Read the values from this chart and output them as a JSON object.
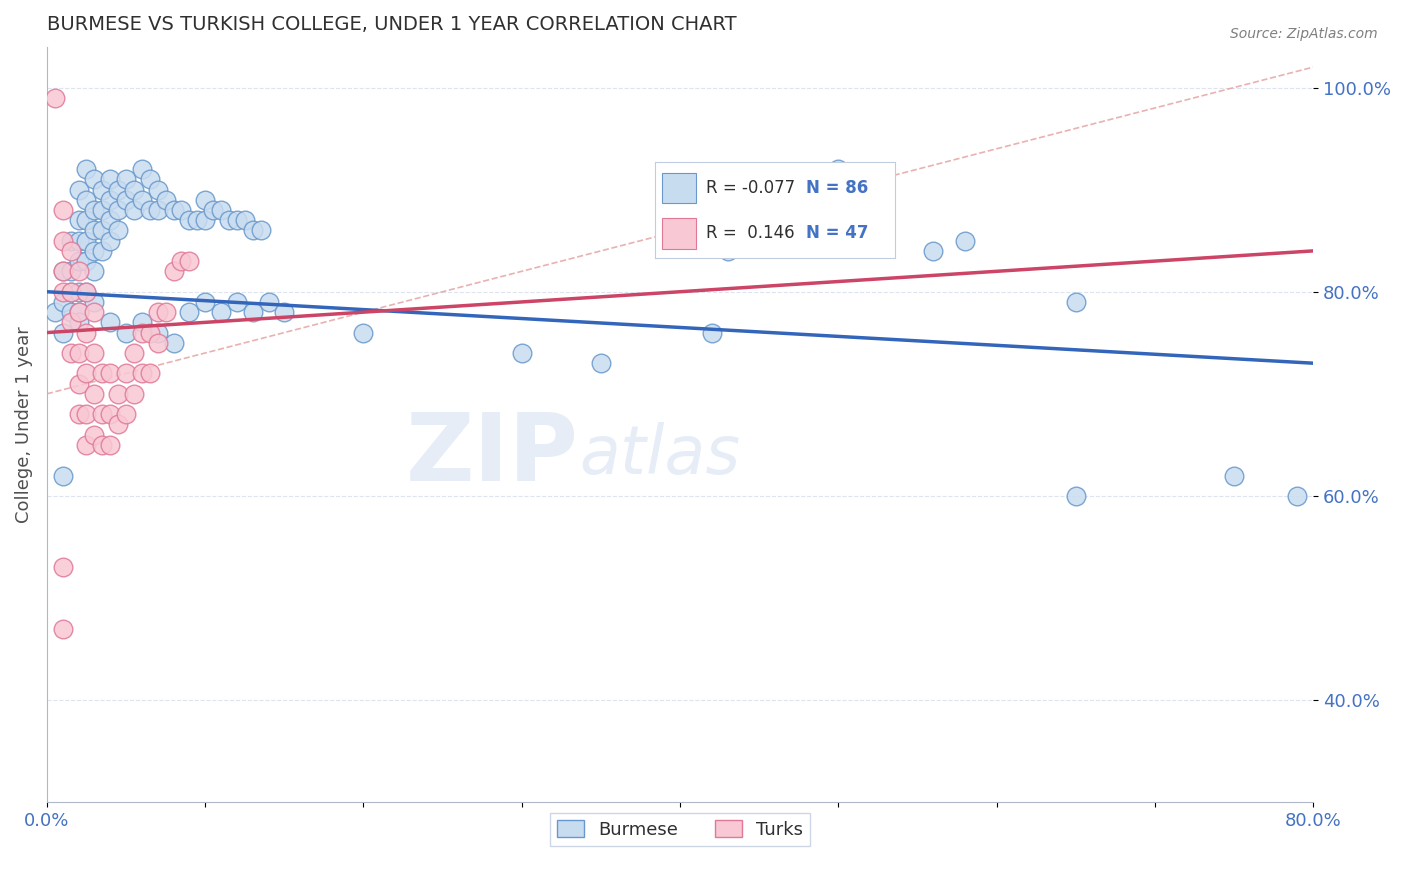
{
  "title": "BURMESE VS TURKISH COLLEGE, UNDER 1 YEAR CORRELATION CHART",
  "source_text": "Source: ZipAtlas.com",
  "ylabel": "College, Under 1 year",
  "xlim": [
    0.0,
    0.8
  ],
  "ylim": [
    0.3,
    1.04
  ],
  "xticks": [
    0.0,
    0.1,
    0.2,
    0.3,
    0.4,
    0.5,
    0.6,
    0.7,
    0.8
  ],
  "yticks": [
    0.4,
    0.6,
    0.8,
    1.0
  ],
  "yticklabels": [
    "40.0%",
    "60.0%",
    "80.0%",
    "100.0%"
  ],
  "legend_blue_r": "-0.077",
  "legend_blue_n": "86",
  "legend_pink_r": "0.146",
  "legend_pink_n": "47",
  "legend_label_blue": "Burmese",
  "legend_label_pink": "Turks",
  "blue_face_color": "#c8dcf0",
  "blue_edge_color": "#6898cc",
  "pink_face_color": "#f8c8d4",
  "pink_edge_color": "#e07898",
  "blue_line_color": "#3366bb",
  "pink_line_color": "#cc4466",
  "diag_line_color": "#e09090",
  "blue_scatter": [
    [
      0.005,
      0.78
    ],
    [
      0.01,
      0.82
    ],
    [
      0.01,
      0.79
    ],
    [
      0.01,
      0.76
    ],
    [
      0.015,
      0.85
    ],
    [
      0.015,
      0.82
    ],
    [
      0.015,
      0.8
    ],
    [
      0.015,
      0.78
    ],
    [
      0.02,
      0.9
    ],
    [
      0.02,
      0.87
    ],
    [
      0.02,
      0.85
    ],
    [
      0.02,
      0.83
    ],
    [
      0.02,
      0.8
    ],
    [
      0.02,
      0.78
    ],
    [
      0.025,
      0.92
    ],
    [
      0.025,
      0.89
    ],
    [
      0.025,
      0.87
    ],
    [
      0.025,
      0.85
    ],
    [
      0.025,
      0.83
    ],
    [
      0.025,
      0.8
    ],
    [
      0.03,
      0.91
    ],
    [
      0.03,
      0.88
    ],
    [
      0.03,
      0.86
    ],
    [
      0.03,
      0.84
    ],
    [
      0.03,
      0.82
    ],
    [
      0.03,
      0.79
    ],
    [
      0.035,
      0.9
    ],
    [
      0.035,
      0.88
    ],
    [
      0.035,
      0.86
    ],
    [
      0.035,
      0.84
    ],
    [
      0.04,
      0.91
    ],
    [
      0.04,
      0.89
    ],
    [
      0.04,
      0.87
    ],
    [
      0.04,
      0.85
    ],
    [
      0.045,
      0.9
    ],
    [
      0.045,
      0.88
    ],
    [
      0.045,
      0.86
    ],
    [
      0.05,
      0.91
    ],
    [
      0.05,
      0.89
    ],
    [
      0.055,
      0.9
    ],
    [
      0.055,
      0.88
    ],
    [
      0.06,
      0.92
    ],
    [
      0.06,
      0.89
    ],
    [
      0.065,
      0.91
    ],
    [
      0.065,
      0.88
    ],
    [
      0.07,
      0.9
    ],
    [
      0.07,
      0.88
    ],
    [
      0.075,
      0.89
    ],
    [
      0.08,
      0.88
    ],
    [
      0.085,
      0.88
    ],
    [
      0.09,
      0.87
    ],
    [
      0.095,
      0.87
    ],
    [
      0.1,
      0.89
    ],
    [
      0.1,
      0.87
    ],
    [
      0.105,
      0.88
    ],
    [
      0.11,
      0.88
    ],
    [
      0.115,
      0.87
    ],
    [
      0.12,
      0.87
    ],
    [
      0.125,
      0.87
    ],
    [
      0.13,
      0.86
    ],
    [
      0.135,
      0.86
    ],
    [
      0.04,
      0.77
    ],
    [
      0.05,
      0.76
    ],
    [
      0.06,
      0.77
    ],
    [
      0.07,
      0.76
    ],
    [
      0.08,
      0.75
    ],
    [
      0.09,
      0.78
    ],
    [
      0.1,
      0.79
    ],
    [
      0.11,
      0.78
    ],
    [
      0.12,
      0.79
    ],
    [
      0.13,
      0.78
    ],
    [
      0.14,
      0.79
    ],
    [
      0.15,
      0.78
    ],
    [
      0.2,
      0.76
    ],
    [
      0.3,
      0.74
    ],
    [
      0.35,
      0.73
    ],
    [
      0.42,
      0.76
    ],
    [
      0.43,
      0.84
    ],
    [
      0.5,
      0.92
    ],
    [
      0.56,
      0.84
    ],
    [
      0.58,
      0.85
    ],
    [
      0.65,
      0.79
    ],
    [
      0.65,
      0.6
    ],
    [
      0.75,
      0.62
    ],
    [
      0.79,
      0.6
    ],
    [
      0.01,
      0.62
    ],
    [
      0.02,
      0.77
    ]
  ],
  "pink_scatter": [
    [
      0.005,
      0.99
    ],
    [
      0.01,
      0.88
    ],
    [
      0.01,
      0.85
    ],
    [
      0.01,
      0.82
    ],
    [
      0.01,
      0.8
    ],
    [
      0.015,
      0.84
    ],
    [
      0.015,
      0.8
    ],
    [
      0.015,
      0.77
    ],
    [
      0.015,
      0.74
    ],
    [
      0.02,
      0.82
    ],
    [
      0.02,
      0.78
    ],
    [
      0.02,
      0.74
    ],
    [
      0.02,
      0.71
    ],
    [
      0.02,
      0.68
    ],
    [
      0.025,
      0.8
    ],
    [
      0.025,
      0.76
    ],
    [
      0.025,
      0.72
    ],
    [
      0.025,
      0.68
    ],
    [
      0.025,
      0.65
    ],
    [
      0.03,
      0.78
    ],
    [
      0.03,
      0.74
    ],
    [
      0.03,
      0.7
    ],
    [
      0.03,
      0.66
    ],
    [
      0.035,
      0.72
    ],
    [
      0.035,
      0.68
    ],
    [
      0.035,
      0.65
    ],
    [
      0.04,
      0.72
    ],
    [
      0.04,
      0.68
    ],
    [
      0.04,
      0.65
    ],
    [
      0.045,
      0.7
    ],
    [
      0.045,
      0.67
    ],
    [
      0.05,
      0.72
    ],
    [
      0.05,
      0.68
    ],
    [
      0.055,
      0.74
    ],
    [
      0.055,
      0.7
    ],
    [
      0.06,
      0.76
    ],
    [
      0.06,
      0.72
    ],
    [
      0.065,
      0.76
    ],
    [
      0.065,
      0.72
    ],
    [
      0.07,
      0.78
    ],
    [
      0.07,
      0.75
    ],
    [
      0.075,
      0.78
    ],
    [
      0.08,
      0.82
    ],
    [
      0.085,
      0.83
    ],
    [
      0.09,
      0.83
    ],
    [
      0.01,
      0.53
    ],
    [
      0.01,
      0.47
    ]
  ],
  "blue_line_x": [
    0.0,
    0.8
  ],
  "blue_line_y": [
    0.8,
    0.73
  ],
  "pink_line_x": [
    0.0,
    0.8
  ],
  "pink_line_y": [
    0.76,
    0.84
  ],
  "diag_line_x": [
    0.0,
    0.8
  ],
  "diag_line_y": [
    0.7,
    1.02
  ],
  "watermark_zip": "ZIP",
  "watermark_atlas": "atlas",
  "background_color": "#ffffff",
  "grid_color": "#dde4f0",
  "title_color": "#303030",
  "axis_label_color": "#505050",
  "tick_color": "#4472c4",
  "legend_r_color": "#4472c4",
  "legend_text_color": "#303030"
}
